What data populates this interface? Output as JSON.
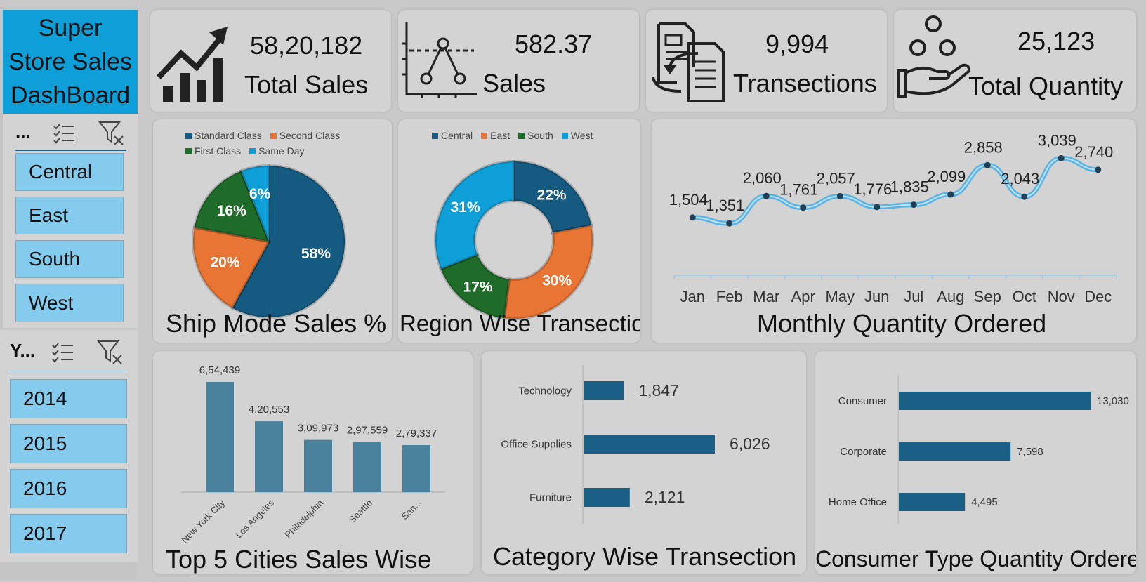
{
  "dashboard_title": "Super Store Sales DashBoard",
  "colors": {
    "accent": "#0f9fd8",
    "slicer": "#84cbed",
    "bar": "#1b5f86",
    "city_bar": "#4a819c",
    "line": "#5ab3e0",
    "line_dot": "#1f3f55"
  },
  "kpis": [
    {
      "icon": "growth-chart-icon",
      "value": "58,20,182",
      "label": "Total Sales"
    },
    {
      "icon": "scatter-plot-icon",
      "value": "582.37",
      "label": "Sales"
    },
    {
      "icon": "document-exchange-icon",
      "value": "9,994",
      "label": "Transections"
    },
    {
      "icon": "hand-coins-icon",
      "value": "25,123",
      "label": "Total Quantity"
    }
  ],
  "slicers": {
    "region": {
      "header": "...",
      "items": [
        "Central",
        "East",
        "South",
        "West"
      ]
    },
    "year": {
      "header": "Y...",
      "items": [
        "2014",
        "2015",
        "2016",
        "2017"
      ]
    }
  },
  "chart_data": [
    {
      "type": "pie",
      "title": "Ship Mode Sales %",
      "legend_position": "top",
      "slices": [
        {
          "name": "Standard Class",
          "value": 58,
          "label": "58%",
          "color": "#155a80"
        },
        {
          "name": "Second Class",
          "value": 20,
          "label": "20%",
          "color": "#e87533"
        },
        {
          "name": "First Class",
          "value": 16,
          "label": "16%",
          "color": "#1e6b2a"
        },
        {
          "name": "Same Day",
          "value": 6,
          "label": "6%",
          "color": "#0f9fd8"
        }
      ]
    },
    {
      "type": "pie",
      "subtype": "doughnut",
      "title": "Region Wise Transection",
      "legend_position": "top",
      "slices": [
        {
          "name": "Central",
          "value": 22,
          "label": "22%",
          "color": "#155a80"
        },
        {
          "name": "East",
          "value": 30,
          "label": "30%",
          "color": "#e87533"
        },
        {
          "name": "South",
          "value": 17,
          "label": "17%",
          "color": "#1e6b2a"
        },
        {
          "name": "West",
          "value": 31,
          "label": "31%",
          "color": "#0f9fd8"
        }
      ]
    },
    {
      "type": "line",
      "title": "Monthly Quantity Ordered",
      "categories": [
        "Jan",
        "Feb",
        "Mar",
        "Apr",
        "May",
        "Jun",
        "Jul",
        "Aug",
        "Sep",
        "Oct",
        "Nov",
        "Dec"
      ],
      "values": [
        1504,
        1351,
        2060,
        1761,
        2057,
        1776,
        1835,
        2099,
        2858,
        2043,
        3039,
        2740
      ],
      "labels": [
        "1,504",
        "1,351",
        "2,060",
        "1,761",
        "2,057",
        "1,776",
        "1,835",
        "2,099",
        "2,858",
        "2,043",
        "3,039",
        "2,740"
      ],
      "grid": false
    },
    {
      "type": "bar",
      "title": "Top 5 Cities Sales Wise",
      "categories": [
        "New York City",
        "Los Angeles",
        "Philadelphia",
        "Seattle",
        "San..."
      ],
      "values": [
        654439,
        420553,
        309973,
        297559,
        279337
      ],
      "labels": [
        "6,54,439",
        "4,20,553",
        "3,09,973",
        "2,97,559",
        "2,79,337"
      ]
    },
    {
      "type": "bar",
      "orientation": "horizontal",
      "title": "Category Wise Transection",
      "categories": [
        "Technology",
        "Office Supplies",
        "Furniture"
      ],
      "values": [
        1847,
        6026,
        2121
      ],
      "labels": [
        "1,847",
        "6,026",
        "2,121"
      ]
    },
    {
      "type": "bar",
      "orientation": "horizontal",
      "title": "Consumer Type Quantity Ordered",
      "categories": [
        "Consumer",
        "Corporate",
        "Home Office"
      ],
      "values": [
        13030,
        7598,
        4495
      ],
      "labels": [
        "13,030",
        "7,598",
        "4,495"
      ]
    }
  ]
}
